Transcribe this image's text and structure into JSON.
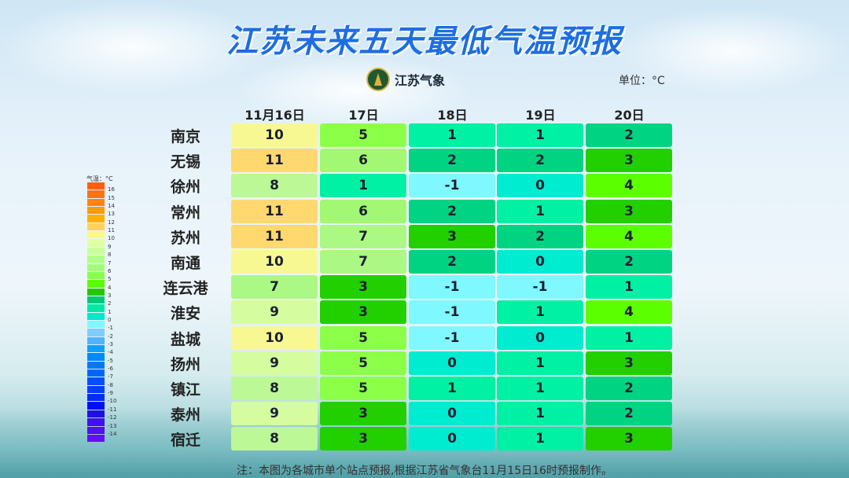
{
  "title": "江苏未来五天最低气温预报",
  "logo_text": "江苏气象",
  "unit": "单位：°C",
  "columns": [
    "11月16日",
    "17日",
    "18日",
    "19日",
    "20日"
  ],
  "rows": [
    {
      "city": "南京",
      "values": [
        10,
        5,
        1,
        1,
        2
      ]
    },
    {
      "city": "无锡",
      "values": [
        11,
        6,
        2,
        2,
        3
      ]
    },
    {
      "city": "徐州",
      "values": [
        8,
        1,
        -1,
        0,
        4
      ]
    },
    {
      "city": "常州",
      "values": [
        11,
        6,
        2,
        1,
        3
      ]
    },
    {
      "city": "苏州",
      "values": [
        11,
        7,
        3,
        2,
        4
      ]
    },
    {
      "city": "南通",
      "values": [
        10,
        7,
        2,
        0,
        2
      ]
    },
    {
      "city": "连云港",
      "values": [
        7,
        3,
        -1,
        -1,
        1
      ]
    },
    {
      "city": "淮安",
      "values": [
        9,
        3,
        -1,
        1,
        4
      ]
    },
    {
      "city": "盐城",
      "values": [
        10,
        5,
        -1,
        0,
        1
      ]
    },
    {
      "city": "扬州",
      "values": [
        9,
        5,
        0,
        1,
        3
      ]
    },
    {
      "city": "镇江",
      "values": [
        8,
        5,
        1,
        1,
        2
      ]
    },
    {
      "city": "泰州",
      "values": [
        9,
        3,
        0,
        1,
        2
      ]
    },
    {
      "city": "宿迁",
      "values": [
        8,
        3,
        0,
        1,
        3
      ]
    }
  ],
  "value_colors": {
    "-1": "#80f8ff",
    "0": "#00ecd0",
    "1": "#00f0a4",
    "2": "#00d482",
    "3": "#22d000",
    "4": "#5cff00",
    "5": "#8cff48",
    "6": "#a2f872",
    "7": "#acf884",
    "8": "#bcf896",
    "9": "#d6fca0",
    "10": "#f8f892",
    "11": "#ffd870"
  },
  "legend": {
    "title": "气温：°C",
    "labels": [
      "16",
      "15",
      "14",
      "13",
      "12",
      "11",
      "10",
      "9",
      "8",
      "7",
      "6",
      "5",
      "4",
      "3",
      "2",
      "1",
      "0",
      "-1",
      "-2",
      "-3",
      "-4",
      "-5",
      "-6",
      "-7",
      "-8",
      "-9",
      "-10",
      "-11",
      "-12",
      "-13",
      "-14"
    ],
    "colors": [
      "#ff6010",
      "#ff7214",
      "#ff8414",
      "#ff9812",
      "#ffb000",
      "#ffd064",
      "#f8f890",
      "#e0ffa0",
      "#c8ff98",
      "#b0ff88",
      "#a0ff78",
      "#88ff50",
      "#58ff00",
      "#22c800",
      "#00c878",
      "#00e8a4",
      "#00e8cc",
      "#80f8ff",
      "#80ccff",
      "#50b4ff",
      "#10a0ff",
      "#0088ff",
      "#0078ff",
      "#0066ff",
      "#0050ff",
      "#0040ff",
      "#0030f0",
      "#0010f0",
      "#2010e0",
      "#4010f0",
      "#5010f0",
      "#6010ff"
    ]
  },
  "footer": "注：本图为各城市单个站点预报,根据江苏省气象台11月15日16时预报制作。"
}
